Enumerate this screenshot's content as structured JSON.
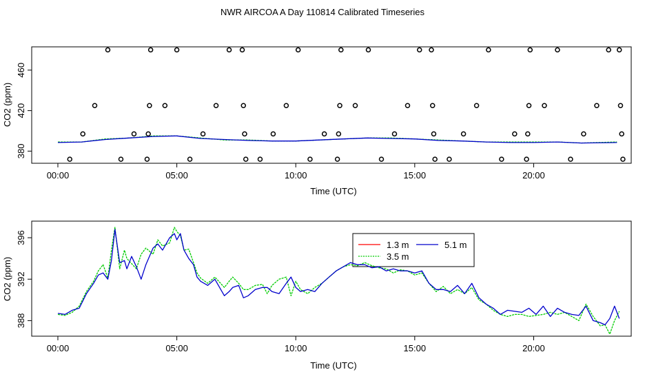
{
  "title": "NWR AIRCOA A  Day 110814  Calibrated Timeseries",
  "colors": {
    "s1_3m": "#ff0000",
    "s3_5m": "#00cc00",
    "s5_1m": "#0000cc",
    "axis": "#000000"
  },
  "chart_data": [
    {
      "type": "line+scatter",
      "xlabel": "Time (UTC)",
      "ylabel": "CO2 (ppm)",
      "xlim": [
        -1.1,
        24.1
      ],
      "ylim": [
        368,
        483
      ],
      "x_ticks": [
        0,
        5,
        10,
        15,
        20
      ],
      "x_tick_labels": [
        "00:00",
        "05:00",
        "10:00",
        "15:00",
        "20:00"
      ],
      "y_ticks": [
        380,
        420,
        460
      ],
      "y_tick_labels": [
        "380",
        "420",
        "460"
      ],
      "grid": false,
      "scatter_markers": [
        {
          "x": 0.5,
          "y": 372
        },
        {
          "x": 1.05,
          "y": 397
        },
        {
          "x": 1.55,
          "y": 425
        },
        {
          "x": 2.1,
          "y": 480
        },
        {
          "x": 2.65,
          "y": 372
        },
        {
          "x": 3.2,
          "y": 397
        },
        {
          "x": 3.75,
          "y": 372
        },
        {
          "x": 3.8,
          "y": 397
        },
        {
          "x": 3.85,
          "y": 425
        },
        {
          "x": 3.9,
          "y": 480
        },
        {
          "x": 4.5,
          "y": 425
        },
        {
          "x": 5.0,
          "y": 480
        },
        {
          "x": 5.55,
          "y": 372
        },
        {
          "x": 6.1,
          "y": 397
        },
        {
          "x": 6.65,
          "y": 425
        },
        {
          "x": 7.2,
          "y": 480
        },
        {
          "x": 7.75,
          "y": 480
        },
        {
          "x": 7.8,
          "y": 425
        },
        {
          "x": 7.85,
          "y": 397
        },
        {
          "x": 7.9,
          "y": 372
        },
        {
          "x": 8.5,
          "y": 372
        },
        {
          "x": 9.05,
          "y": 397
        },
        {
          "x": 9.6,
          "y": 425
        },
        {
          "x": 10.1,
          "y": 480
        },
        {
          "x": 10.6,
          "y": 372
        },
        {
          "x": 11.2,
          "y": 397
        },
        {
          "x": 11.75,
          "y": 372
        },
        {
          "x": 11.8,
          "y": 397
        },
        {
          "x": 11.85,
          "y": 425
        },
        {
          "x": 11.9,
          "y": 480
        },
        {
          "x": 12.5,
          "y": 425
        },
        {
          "x": 13.05,
          "y": 480
        },
        {
          "x": 13.6,
          "y": 372
        },
        {
          "x": 14.15,
          "y": 397
        },
        {
          "x": 14.7,
          "y": 425
        },
        {
          "x": 15.2,
          "y": 480
        },
        {
          "x": 15.7,
          "y": 480
        },
        {
          "x": 15.75,
          "y": 425
        },
        {
          "x": 15.8,
          "y": 397
        },
        {
          "x": 15.85,
          "y": 372
        },
        {
          "x": 16.45,
          "y": 372
        },
        {
          "x": 17.05,
          "y": 397
        },
        {
          "x": 17.6,
          "y": 425
        },
        {
          "x": 18.1,
          "y": 480
        },
        {
          "x": 18.65,
          "y": 372
        },
        {
          "x": 19.2,
          "y": 397
        },
        {
          "x": 19.7,
          "y": 372
        },
        {
          "x": 19.75,
          "y": 397
        },
        {
          "x": 19.8,
          "y": 425
        },
        {
          "x": 19.85,
          "y": 480
        },
        {
          "x": 20.45,
          "y": 425
        },
        {
          "x": 21.0,
          "y": 480
        },
        {
          "x": 21.55,
          "y": 372
        },
        {
          "x": 22.1,
          "y": 397
        },
        {
          "x": 22.65,
          "y": 425
        },
        {
          "x": 23.15,
          "y": 480
        },
        {
          "x": 23.6,
          "y": 480
        },
        {
          "x": 23.65,
          "y": 425
        },
        {
          "x": 23.7,
          "y": 397
        },
        {
          "x": 23.75,
          "y": 372
        }
      ],
      "series": [
        {
          "name": "3.5 m",
          "color": "#00cc00",
          "x": [
            0,
            1,
            2,
            3,
            4,
            5,
            6,
            7,
            8,
            9,
            10,
            11,
            12,
            13,
            14,
            15,
            16,
            17,
            18,
            19,
            20,
            21,
            22,
            23.5
          ],
          "y": [
            389,
            389,
            392,
            393,
            395,
            395,
            393,
            391,
            391,
            390,
            390,
            391,
            392,
            393,
            393,
            392,
            391,
            390,
            389,
            389,
            389,
            389,
            388,
            389
          ]
        },
        {
          "name": "5.1 m",
          "color": "#0000cc",
          "x": [
            0,
            1,
            2,
            3,
            4,
            5,
            6,
            7,
            8,
            9,
            10,
            11,
            12,
            13,
            14,
            15,
            16,
            17,
            18,
            19,
            20,
            21,
            22,
            23.5
          ],
          "y": [
            388.5,
            389,
            391.5,
            393,
            394.5,
            395,
            392.5,
            391.5,
            390.5,
            390,
            390,
            391,
            392,
            393,
            392.5,
            392,
            390.5,
            390,
            389,
            388.5,
            388.5,
            389,
            388,
            388.5
          ]
        }
      ]
    },
    {
      "type": "line",
      "xlabel": "Time (UTC)",
      "ylabel": "CO2 (ppm)",
      "xlim": [
        -1.1,
        24.1
      ],
      "ylim": [
        386.5,
        397.6
      ],
      "x_ticks": [
        0,
        5,
        10,
        15,
        20
      ],
      "x_tick_labels": [
        "00:00",
        "05:00",
        "10:00",
        "15:00",
        "20:00"
      ],
      "y_ticks": [
        388,
        392,
        396
      ],
      "y_tick_labels": [
        "388",
        "392",
        "396"
      ],
      "grid": false,
      "legend_position": "top-center",
      "series": [
        {
          "name": "1.3 m",
          "color": "#ff0000",
          "x": [],
          "y": []
        },
        {
          "name": "3.5 m",
          "color": "#00cc00",
          "x": [
            0,
            0.3,
            0.6,
            0.9,
            1.2,
            1.5,
            1.7,
            1.9,
            2.1,
            2.25,
            2.4,
            2.6,
            2.8,
            2.9,
            3.1,
            3.3,
            3.5,
            3.7,
            4.0,
            4.2,
            4.4,
            4.7,
            4.9,
            5.0,
            5.15,
            5.3,
            5.5,
            5.7,
            5.85,
            6.0,
            6.3,
            6.6,
            7.0,
            7.2,
            7.35,
            7.6,
            7.8,
            8.0,
            8.3,
            8.6,
            8.8,
            9.0,
            9.3,
            9.6,
            9.8,
            10.0,
            10.2,
            10.5,
            10.8,
            11.1,
            11.4,
            11.7,
            12.0,
            12.3,
            12.6,
            12.9,
            13.2,
            13.5,
            13.8,
            14.1,
            14.4,
            14.7,
            15.0,
            15.3,
            15.6,
            15.9,
            16.2,
            16.5,
            16.8,
            17.1,
            17.4,
            17.7,
            18.0,
            18.3,
            18.6,
            18.9,
            19.2,
            19.5,
            19.8,
            20.1,
            20.4,
            20.7,
            21.0,
            21.3,
            21.6,
            21.9,
            22.2,
            22.5,
            22.8,
            23.0,
            23.2,
            23.4,
            23.6
          ],
          "y": [
            388.6,
            388.5,
            388.8,
            389.4,
            390.8,
            391.8,
            392.8,
            393.4,
            392.1,
            394.8,
            397.0,
            393.0,
            394.8,
            394.0,
            393.5,
            393.0,
            394.4,
            395.0,
            394.4,
            395.8,
            395.2,
            395.5,
            397.0,
            396.6,
            396.2,
            394.8,
            394.9,
            393.6,
            392.6,
            392.1,
            391.6,
            392.2,
            391.2,
            391.8,
            392.2,
            391.6,
            391.0,
            391.0,
            391.4,
            391.5,
            390.6,
            391.4,
            392.0,
            392.2,
            390.4,
            391.8,
            391.0,
            390.6,
            391.2,
            391.6,
            392.2,
            392.8,
            393.2,
            393.4,
            393.3,
            393.6,
            393.3,
            393.1,
            393.0,
            392.6,
            392.9,
            392.8,
            392.4,
            392.6,
            391.6,
            390.8,
            391.3,
            390.6,
            391.0,
            390.6,
            391.2,
            390.0,
            389.6,
            389.0,
            388.6,
            388.4,
            388.6,
            388.6,
            388.4,
            388.5,
            388.6,
            388.8,
            388.6,
            388.8,
            388.4,
            388.0,
            389.6,
            388.4,
            387.5,
            387.6,
            386.7,
            388.0,
            388.9
          ]
        },
        {
          "name": "5.1 m",
          "color": "#0000cc",
          "x": [
            0,
            0.3,
            0.6,
            0.9,
            1.2,
            1.5,
            1.7,
            1.9,
            2.1,
            2.25,
            2.4,
            2.6,
            2.8,
            2.9,
            3.1,
            3.3,
            3.5,
            3.7,
            4.0,
            4.2,
            4.4,
            4.7,
            4.9,
            5.0,
            5.15,
            5.3,
            5.5,
            5.7,
            5.85,
            6.0,
            6.3,
            6.6,
            7.0,
            7.2,
            7.35,
            7.6,
            7.8,
            8.0,
            8.3,
            8.6,
            8.8,
            9.0,
            9.3,
            9.6,
            9.8,
            10.0,
            10.2,
            10.5,
            10.8,
            11.1,
            11.4,
            11.7,
            12.0,
            12.3,
            12.6,
            12.9,
            13.2,
            13.5,
            13.8,
            14.1,
            14.4,
            14.7,
            15.0,
            15.3,
            15.6,
            15.9,
            16.2,
            16.5,
            16.8,
            17.1,
            17.4,
            17.7,
            18.0,
            18.3,
            18.6,
            18.9,
            19.2,
            19.5,
            19.8,
            20.1,
            20.4,
            20.7,
            21.0,
            21.3,
            21.6,
            21.9,
            22.2,
            22.5,
            22.8,
            23.0,
            23.2,
            23.4,
            23.6
          ],
          "y": [
            388.7,
            388.6,
            389.0,
            389.2,
            390.6,
            391.6,
            392.4,
            392.6,
            392.0,
            393.8,
            396.8,
            393.6,
            393.8,
            393.0,
            394.2,
            393.2,
            392.0,
            393.4,
            395.0,
            395.4,
            394.8,
            396.0,
            396.4,
            395.8,
            396.4,
            394.8,
            394.0,
            393.4,
            392.2,
            391.8,
            391.4,
            392.0,
            390.4,
            390.8,
            391.2,
            391.4,
            390.2,
            390.4,
            391.0,
            391.2,
            391.2,
            390.8,
            390.6,
            391.6,
            392.2,
            391.2,
            390.8,
            391.0,
            390.8,
            391.6,
            392.2,
            392.8,
            393.2,
            393.6,
            393.4,
            393.4,
            393.1,
            393.2,
            392.8,
            393.0,
            392.8,
            392.8,
            392.6,
            392.8,
            391.6,
            391.0,
            391.0,
            390.8,
            391.4,
            390.6,
            391.6,
            390.2,
            389.6,
            389.2,
            388.6,
            389.0,
            388.9,
            388.8,
            389.2,
            388.6,
            389.4,
            388.4,
            389.2,
            388.8,
            388.6,
            388.5,
            389.4,
            388.0,
            387.8,
            387.6,
            388.2,
            389.4,
            388.2
          ]
        }
      ]
    }
  ]
}
